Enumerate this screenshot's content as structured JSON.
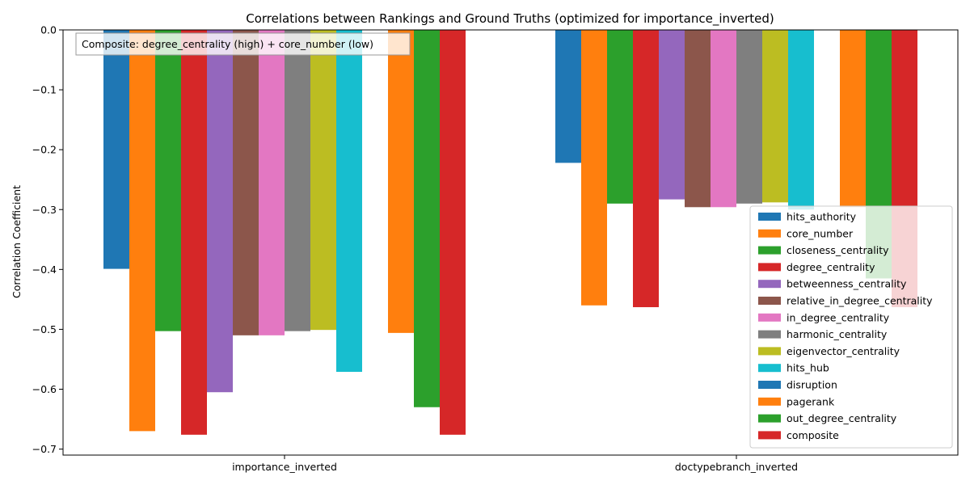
{
  "chart_data": {
    "type": "bar",
    "title": "Correlations between Rankings and Ground Truths (optimized for importance_inverted)",
    "xlabel": "",
    "ylabel": "Correlation Coefficient",
    "ylim": [
      -0.71,
      0.0
    ],
    "yticks": [
      0.0,
      -0.1,
      -0.2,
      -0.3,
      -0.4,
      -0.5,
      -0.6,
      -0.7
    ],
    "ytick_labels": [
      "0.0",
      "−0.1",
      "−0.2",
      "−0.3",
      "−0.4",
      "−0.5",
      "−0.6",
      "−0.7"
    ],
    "categories": [
      "importance_inverted",
      "doctypebranch_inverted"
    ],
    "grid": false,
    "legend_position": "lower-right",
    "annotation": "Composite: degree_centrality (high) + core_number (low)",
    "series": [
      {
        "name": "hits_authority",
        "color": "#1f77b4",
        "values": [
          -0.399,
          -0.222
        ]
      },
      {
        "name": "core_number",
        "color": "#ff7f0e",
        "values": [
          -0.67,
          -0.46
        ]
      },
      {
        "name": "closeness_centrality",
        "color": "#2ca02c",
        "values": [
          -0.503,
          -0.29
        ]
      },
      {
        "name": "degree_centrality",
        "color": "#d62728",
        "values": [
          -0.676,
          -0.463
        ]
      },
      {
        "name": "betweenness_centrality",
        "color": "#9467bd",
        "values": [
          -0.605,
          -0.283
        ]
      },
      {
        "name": "relative_in_degree_centrality",
        "color": "#8c564b",
        "values": [
          -0.51,
          -0.296
        ]
      },
      {
        "name": "in_degree_centrality",
        "color": "#e377c2",
        "values": [
          -0.51,
          -0.296
        ]
      },
      {
        "name": "harmonic_centrality",
        "color": "#7f7f7f",
        "values": [
          -0.503,
          -0.29
        ]
      },
      {
        "name": "eigenvector_centrality",
        "color": "#bcbd22",
        "values": [
          -0.501,
          -0.288
        ]
      },
      {
        "name": "hits_hub",
        "color": "#17becf",
        "values": [
          -0.571,
          -0.3
        ]
      },
      {
        "name": "disruption",
        "color": "#1f77b4",
        "values": [
          0.0,
          0.0
        ]
      },
      {
        "name": "pagerank",
        "color": "#ff7f0e",
        "values": [
          -0.506,
          -0.296
        ]
      },
      {
        "name": "out_degree_centrality",
        "color": "#2ca02c",
        "values": [
          -0.63,
          -0.415
        ]
      },
      {
        "name": "composite",
        "color": "#d62728",
        "values": [
          -0.676,
          -0.463
        ]
      }
    ]
  }
}
